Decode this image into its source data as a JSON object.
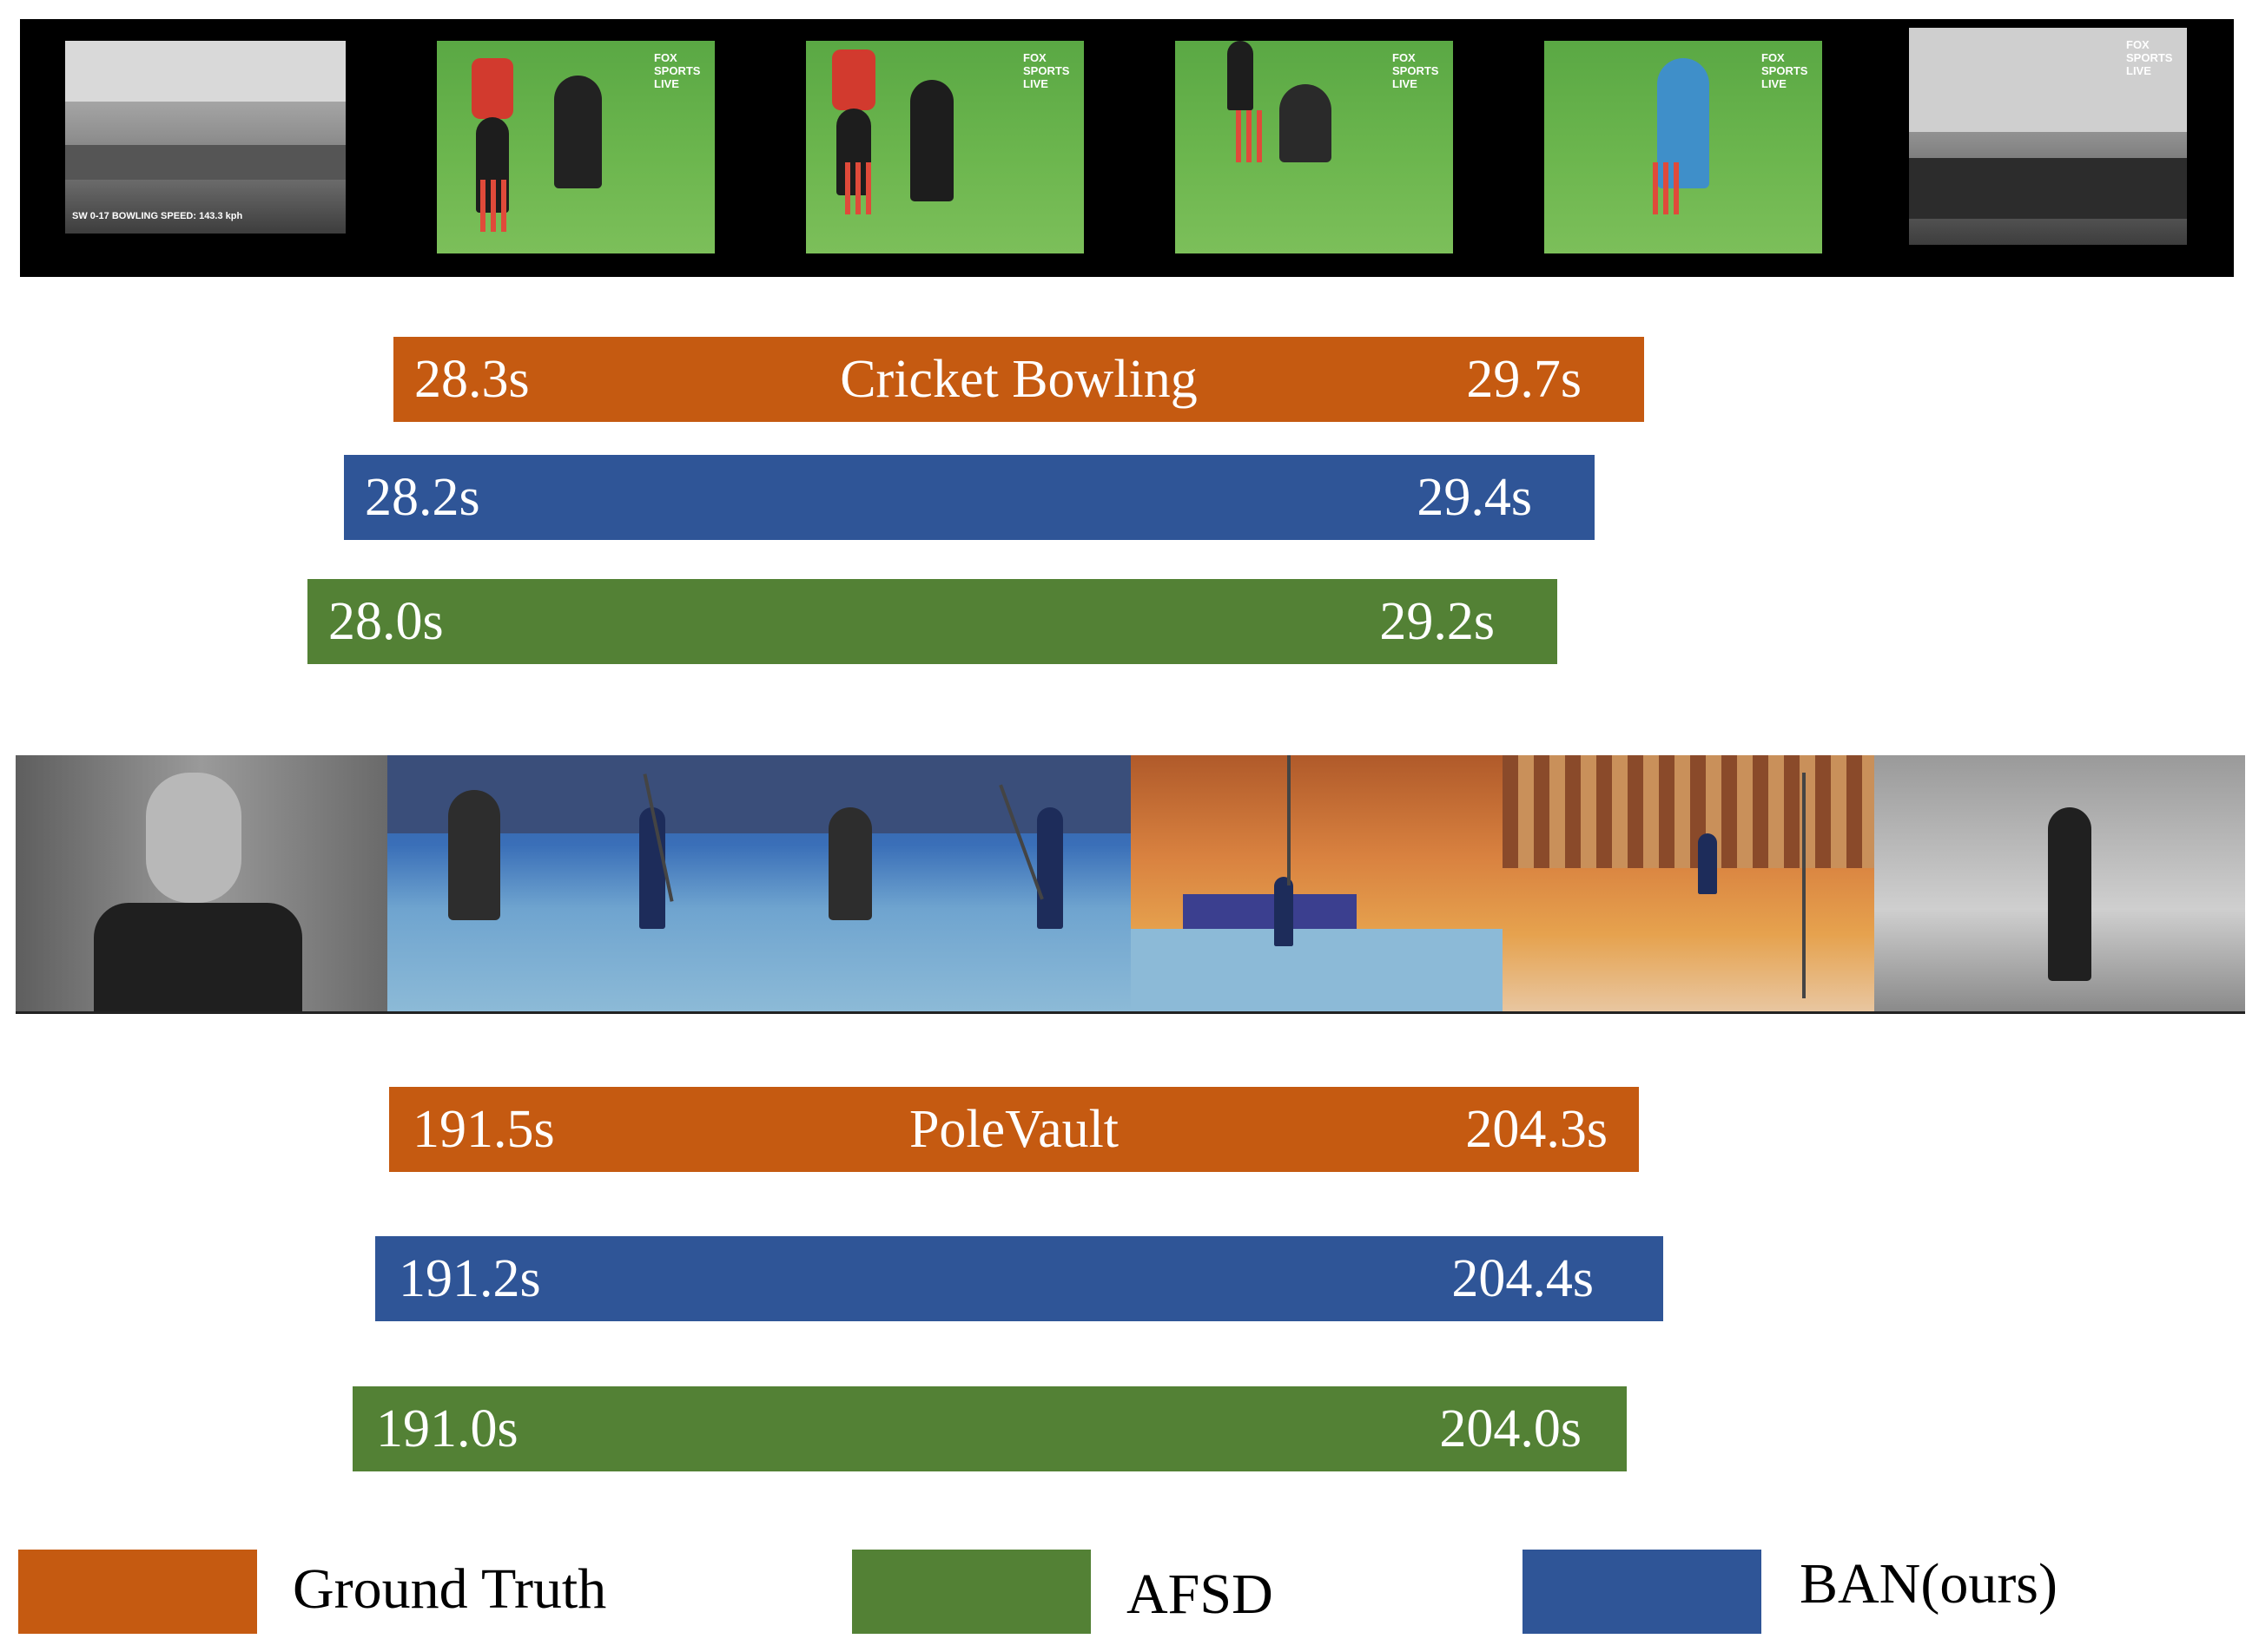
{
  "colors": {
    "ground_truth": "#c55a11",
    "ban": "#2f5597",
    "afsd": "#538135"
  },
  "cricket": {
    "frames": [
      "scoreboard-frame",
      "bowler-runup-frame",
      "bowler-stride-frame",
      "bowler-release-frame",
      "batsman-frame",
      "crowd-frame"
    ],
    "broadcast_logo": "FOX SPORTS LIVE",
    "score_overlay": "SW 0-17  BOWLING SPEED: 143.3 kph",
    "label": "Cricket Bowling",
    "gt": {
      "start": "28.3s",
      "end": "29.7s"
    },
    "ban": {
      "start": "28.2s",
      "end": "29.4s"
    },
    "afsd": {
      "start": "28.0s",
      "end": "29.2s"
    }
  },
  "polevault": {
    "frames": [
      "athlete-closeup-frame",
      "runway-frame-1",
      "runway-frame-2",
      "takeoff-frame",
      "vault-frame",
      "landing-frame"
    ],
    "label": "PoleVault",
    "gt": {
      "start": "191.5s",
      "end": "204.3s"
    },
    "ban": {
      "start": "191.2s",
      "end": "204.4s"
    },
    "afsd": {
      "start": "191.0s",
      "end": "204.0s"
    }
  },
  "legend": [
    {
      "label": "Ground Truth",
      "color": "#c55a11"
    },
    {
      "label": "AFSD",
      "color": "#538135"
    },
    {
      "label": "BAN(ours)",
      "color": "#2f5597"
    }
  ]
}
